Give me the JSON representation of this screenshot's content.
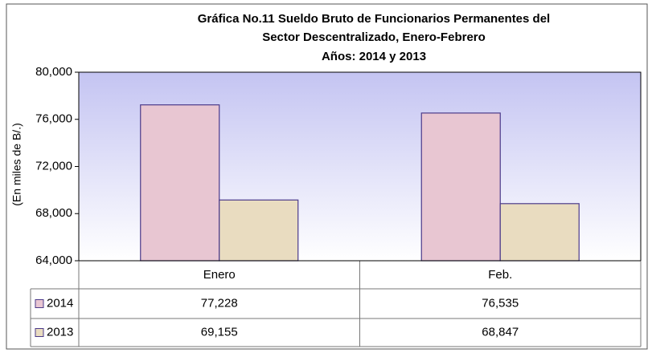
{
  "chart_data": {
    "type": "bar",
    "title": [
      "Gráfica No.11 Sueldo Bruto de Funcionarios Permanentes del",
      "Sector Descentralizado, Enero-Febrero",
      "Años: 2014 y 2013"
    ],
    "y_label": "(En miles de B/.)",
    "categories": [
      "Enero",
      "Feb."
    ],
    "series": [
      {
        "name": "2014",
        "color": "#e8c6d2",
        "values": [
          77228,
          76535
        ],
        "value_labels": [
          "77,228",
          "76,535"
        ]
      },
      {
        "name": "2013",
        "color": "#e9dcc0",
        "values": [
          69155,
          68847
        ],
        "value_labels": [
          "69,155",
          "68,847"
        ]
      }
    ],
    "ylim": [
      64000,
      80000
    ],
    "yticks": [
      {
        "value": 64000,
        "label": "64,000"
      },
      {
        "value": 68000,
        "label": "68,000"
      },
      {
        "value": 72000,
        "label": "72,000"
      },
      {
        "value": 76000,
        "label": "76,000"
      },
      {
        "value": 80000,
        "label": "80,000"
      }
    ],
    "grid": false,
    "data_table": true
  }
}
